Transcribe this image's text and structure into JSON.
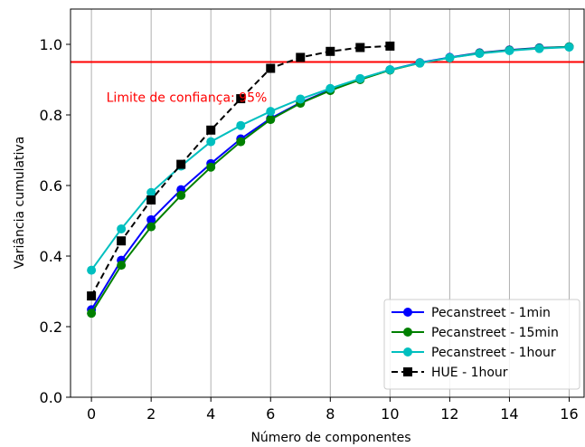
{
  "chart_data": {
    "type": "line",
    "xlabel": "Número de componentes",
    "ylabel": "Variância cumulativa",
    "xlim": [
      -0.7,
      16.5
    ],
    "ylim": [
      0.0,
      1.1
    ],
    "xticks": [
      0,
      2,
      4,
      6,
      8,
      10,
      12,
      14,
      16
    ],
    "yticks": [
      0.0,
      0.2,
      0.4,
      0.6,
      0.8,
      1.0
    ],
    "grid": "x-only",
    "legend_position": "lower-right",
    "threshold": {
      "value": 0.95,
      "color": "#ff0000",
      "label": "Limite de confiança: 95%",
      "label_x": 0.5,
      "label_y": 0.85
    },
    "series": [
      {
        "name": "Pecanstreet - 1min",
        "color": "#0000ff",
        "marker": "circle",
        "linestyle": "solid",
        "x": [
          0,
          1,
          2,
          3,
          4,
          5,
          6,
          7,
          8,
          9,
          10,
          11,
          12,
          13,
          14,
          15,
          16
        ],
        "y": [
          0.248,
          0.388,
          0.503,
          0.588,
          0.662,
          0.732,
          0.79,
          0.835,
          0.871,
          0.902,
          0.928,
          0.948,
          0.963,
          0.976,
          0.984,
          0.99,
          0.993
        ]
      },
      {
        "name": "Pecanstreet - 15min",
        "color": "#008000",
        "marker": "circle",
        "linestyle": "solid",
        "x": [
          0,
          1,
          2,
          3,
          4,
          5,
          6,
          7,
          8,
          9,
          10,
          11,
          12,
          13,
          14,
          15,
          16
        ],
        "y": [
          0.238,
          0.374,
          0.483,
          0.572,
          0.652,
          0.724,
          0.787,
          0.833,
          0.869,
          0.9,
          0.927,
          0.947,
          0.962,
          0.975,
          0.983,
          0.989,
          0.993
        ]
      },
      {
        "name": "Pecanstreet - 1hour",
        "color": "#00bfbf",
        "marker": "circle",
        "linestyle": "solid",
        "x": [
          0,
          1,
          2,
          3,
          4,
          5,
          6,
          7,
          8,
          9,
          10,
          11,
          12,
          13,
          14,
          15,
          16
        ],
        "y": [
          0.36,
          0.477,
          0.58,
          0.655,
          0.724,
          0.77,
          0.81,
          0.845,
          0.875,
          0.903,
          0.928,
          0.947,
          0.962,
          0.974,
          0.982,
          0.988,
          0.992
        ]
      },
      {
        "name": "HUE - 1hour",
        "color": "#000000",
        "marker": "square",
        "linestyle": "dashed",
        "x": [
          0,
          1,
          2,
          3,
          4,
          5,
          6,
          7,
          8,
          9,
          10
        ],
        "y": [
          0.287,
          0.443,
          0.559,
          0.66,
          0.757,
          0.846,
          0.932,
          0.963,
          0.98,
          0.991,
          0.995
        ]
      }
    ]
  }
}
